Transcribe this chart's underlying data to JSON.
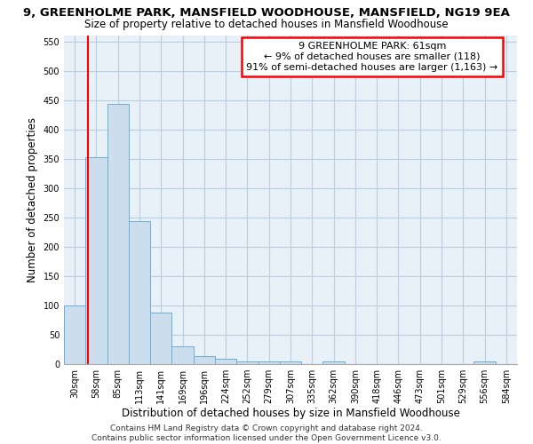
{
  "title_line1": "9, GREENHOLME PARK, MANSFIELD WOODHOUSE, MANSFIELD, NG19 9EA",
  "title_line2": "Size of property relative to detached houses in Mansfield Woodhouse",
  "xlabel": "Distribution of detached houses by size in Mansfield Woodhouse",
  "ylabel": "Number of detached properties",
  "footnote": "Contains HM Land Registry data © Crown copyright and database right 2024.\nContains public sector information licensed under the Open Government Licence v3.0.",
  "bin_labels": [
    "30sqm",
    "58sqm",
    "85sqm",
    "113sqm",
    "141sqm",
    "169sqm",
    "196sqm",
    "224sqm",
    "252sqm",
    "279sqm",
    "307sqm",
    "335sqm",
    "362sqm",
    "390sqm",
    "418sqm",
    "446sqm",
    "473sqm",
    "501sqm",
    "529sqm",
    "556sqm",
    "584sqm"
  ],
  "bar_values": [
    100,
    353,
    443,
    243,
    88,
    30,
    13,
    9,
    5,
    5,
    5,
    0,
    5,
    0,
    0,
    0,
    0,
    0,
    0,
    5,
    0
  ],
  "bar_color": "#ccdded",
  "bar_edge_color": "#6baed6",
  "annotation_text": "9 GREENHOLME PARK: 61sqm\n← 9% of detached houses are smaller (118)\n91% of semi-detached houses are larger (1,163) →",
  "annotation_box_color": "white",
  "annotation_box_edge_color": "red",
  "vline_color": "red",
  "vline_x": 0.62,
  "ylim": [
    0,
    560
  ],
  "yticks": [
    0,
    50,
    100,
    150,
    200,
    250,
    300,
    350,
    400,
    450,
    500,
    550
  ],
  "grid_color": "#b8cfe0",
  "background_color": "#e8f0f8",
  "title_fontsize": 9.5,
  "subtitle_fontsize": 8.5,
  "axis_label_fontsize": 8.5,
  "tick_fontsize": 7,
  "annotation_fontsize": 8,
  "footnote_fontsize": 6.5
}
